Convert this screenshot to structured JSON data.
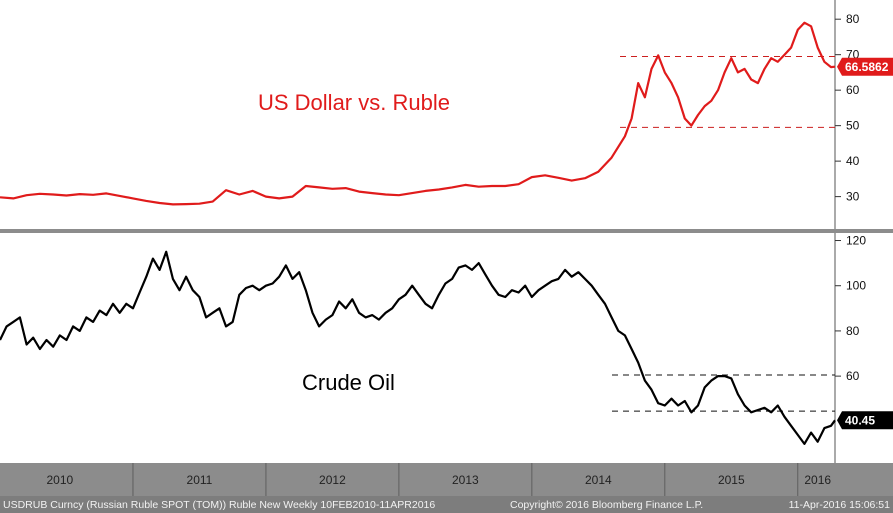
{
  "footer": {
    "left": "USDRUB Curncy (Russian Ruble SPOT (TOM)) Ruble New  Weekly 10FEB2010-11APR2016",
    "center": "Copyright© 2016 Bloomberg Finance L.P.",
    "right": "11-Apr-2016 15:06:51"
  },
  "colors": {
    "usdrub": "#e01b1b",
    "oil": "#000000",
    "last_oil_bg": "#000000",
    "last_usdrub_bg": "#e01b1b",
    "axis_bar": "#8c8c8c",
    "footer_bg": "#7d7d7d"
  },
  "chart_data": [
    {
      "type": "line",
      "title": "US Dollar vs. Ruble",
      "series_name": "USDRUB Curncy",
      "x_range": [
        2010.0,
        2016.28
      ],
      "ylim": [
        22,
        84
      ],
      "yticks": [
        30,
        40,
        50,
        60,
        70,
        80
      ],
      "last_value": 66.5862,
      "last_value_label": "66.5862",
      "reference_lines": [
        69.5,
        49.5
      ],
      "x": [
        2010.0,
        2010.1,
        2010.2,
        2010.3,
        2010.4,
        2010.5,
        2010.6,
        2010.7,
        2010.8,
        2010.9,
        2011.0,
        2011.1,
        2011.2,
        2011.3,
        2011.4,
        2011.5,
        2011.6,
        2011.7,
        2011.8,
        2011.9,
        2012.0,
        2012.1,
        2012.2,
        2012.3,
        2012.4,
        2012.5,
        2012.6,
        2012.7,
        2012.8,
        2012.9,
        2013.0,
        2013.1,
        2013.2,
        2013.3,
        2013.4,
        2013.5,
        2013.6,
        2013.7,
        2013.8,
        2013.9,
        2014.0,
        2014.1,
        2014.2,
        2014.3,
        2014.4,
        2014.5,
        2014.6,
        2014.7,
        2014.75,
        2014.8,
        2014.85,
        2014.9,
        2014.95,
        2015.0,
        2015.05,
        2015.1,
        2015.15,
        2015.2,
        2015.25,
        2015.3,
        2015.35,
        2015.4,
        2015.45,
        2015.5,
        2015.55,
        2015.6,
        2015.65,
        2015.7,
        2015.75,
        2015.8,
        2015.85,
        2015.9,
        2015.95,
        2016.0,
        2016.05,
        2016.1,
        2016.15,
        2016.2,
        2016.25,
        2016.28
      ],
      "y": [
        29.8,
        29.5,
        30.4,
        30.8,
        30.6,
        30.3,
        30.7,
        30.5,
        30.9,
        30.2,
        29.5,
        28.8,
        28.2,
        27.8,
        27.9,
        28.0,
        28.6,
        31.8,
        30.6,
        31.6,
        30.0,
        29.5,
        30.0,
        33.0,
        32.6,
        32.2,
        32.4,
        31.4,
        31.0,
        30.6,
        30.4,
        31.0,
        31.6,
        32.0,
        32.6,
        33.3,
        32.8,
        33.0,
        33.0,
        33.5,
        35.5,
        36.0,
        35.3,
        34.5,
        35.2,
        37.0,
        41.0,
        47.0,
        52.0,
        62.0,
        58.0,
        66.0,
        69.8,
        65.0,
        62.0,
        58.0,
        52.0,
        50.0,
        53.0,
        55.5,
        57.0,
        60.0,
        65.0,
        69.0,
        65.0,
        66.0,
        63.0,
        62.0,
        66.0,
        69.0,
        68.0,
        70.0,
        72.0,
        77.0,
        79.0,
        78.0,
        72.0,
        68.0,
        66.5,
        66.6
      ]
    },
    {
      "type": "line",
      "title": "Crude Oil",
      "series_name": "Crude Oil",
      "x_range": [
        2010.0,
        2016.28
      ],
      "ylim": [
        22,
        122
      ],
      "yticks": [
        60,
        80,
        100,
        120
      ],
      "last_value": 40.45,
      "last_value_label": "40.45",
      "reference_lines": [
        60.5,
        44.5
      ],
      "x": [
        2010.0,
        2010.05,
        2010.1,
        2010.15,
        2010.2,
        2010.25,
        2010.3,
        2010.35,
        2010.4,
        2010.45,
        2010.5,
        2010.55,
        2010.6,
        2010.65,
        2010.7,
        2010.75,
        2010.8,
        2010.85,
        2010.9,
        2010.95,
        2011.0,
        2011.05,
        2011.1,
        2011.15,
        2011.2,
        2011.25,
        2011.3,
        2011.35,
        2011.4,
        2011.45,
        2011.5,
        2011.55,
        2011.6,
        2011.65,
        2011.7,
        2011.75,
        2011.8,
        2011.85,
        2011.9,
        2011.95,
        2012.0,
        2012.05,
        2012.1,
        2012.15,
        2012.2,
        2012.25,
        2012.3,
        2012.35,
        2012.4,
        2012.45,
        2012.5,
        2012.55,
        2012.6,
        2012.65,
        2012.7,
        2012.75,
        2012.8,
        2012.85,
        2012.9,
        2012.95,
        2013.0,
        2013.05,
        2013.1,
        2013.15,
        2013.2,
        2013.25,
        2013.3,
        2013.35,
        2013.4,
        2013.45,
        2013.5,
        2013.55,
        2013.6,
        2013.65,
        2013.7,
        2013.75,
        2013.8,
        2013.85,
        2013.9,
        2013.95,
        2014.0,
        2014.05,
        2014.1,
        2014.15,
        2014.2,
        2014.25,
        2014.3,
        2014.35,
        2014.4,
        2014.45,
        2014.5,
        2014.55,
        2014.6,
        2014.65,
        2014.7,
        2014.75,
        2014.8,
        2014.85,
        2014.9,
        2014.95,
        2015.0,
        2015.05,
        2015.1,
        2015.15,
        2015.2,
        2015.25,
        2015.3,
        2015.35,
        2015.4,
        2015.45,
        2015.5,
        2015.55,
        2015.6,
        2015.65,
        2015.7,
        2015.75,
        2015.8,
        2015.85,
        2015.9,
        2015.95,
        2016.0,
        2016.05,
        2016.1,
        2016.15,
        2016.2,
        2016.25,
        2016.28
      ],
      "y": [
        76,
        82,
        84,
        86,
        74,
        77,
        72,
        76,
        73,
        78,
        76,
        82,
        80,
        86,
        84,
        89,
        87,
        92,
        88,
        92,
        90,
        97,
        104,
        112,
        107,
        115,
        103,
        98,
        104,
        98,
        95,
        86,
        88,
        90,
        82,
        84,
        96,
        99,
        100,
        98,
        100,
        101,
        104,
        109,
        103,
        106,
        98,
        88,
        82,
        85,
        87,
        93,
        90,
        94,
        88,
        86,
        87,
        85,
        88,
        90,
        94,
        96,
        100,
        96,
        92,
        90,
        96,
        101,
        103,
        108,
        109,
        107,
        110,
        105,
        100,
        96,
        95,
        98,
        97,
        100,
        95,
        98,
        100,
        102,
        103,
        107,
        104,
        106,
        103,
        100,
        96,
        92,
        86,
        80,
        78,
        72,
        66,
        58,
        54,
        48,
        47,
        50,
        47,
        49,
        44,
        47,
        55,
        58,
        60,
        60,
        59,
        52,
        47,
        44,
        45,
        46,
        44,
        47,
        42,
        38,
        34,
        30,
        35,
        31,
        37,
        38,
        40.45
      ]
    }
  ],
  "x_axis": {
    "year_labels": [
      "2010",
      "2011",
      "2012",
      "2013",
      "2014",
      "2015",
      "2016"
    ],
    "year_centers": [
      2010.45,
      2011.5,
      2012.5,
      2013.5,
      2014.5,
      2015.5,
      2016.15
    ],
    "year_boundaries": [
      2011.0,
      2012.0,
      2013.0,
      2014.0,
      2015.0,
      2016.0
    ]
  }
}
